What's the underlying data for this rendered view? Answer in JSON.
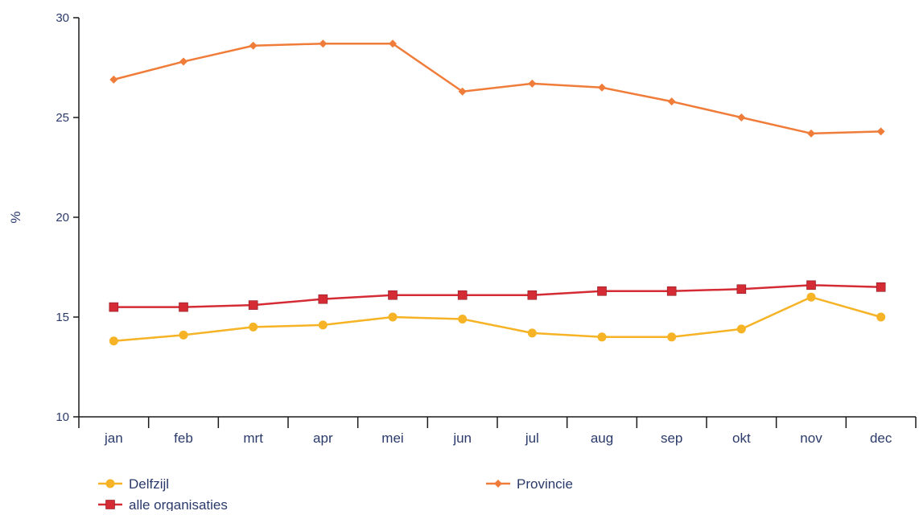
{
  "chart_data": {
    "type": "line",
    "title": "",
    "xlabel": "",
    "ylabel": "%",
    "ylim": [
      10,
      30
    ],
    "yticks": [
      10,
      15,
      20,
      25,
      30
    ],
    "categories": [
      "jan",
      "feb",
      "mrt",
      "apr",
      "mei",
      "jun",
      "jul",
      "aug",
      "sep",
      "okt",
      "nov",
      "dec"
    ],
    "grid": false,
    "legend_position": "bottom",
    "series": [
      {
        "name": "Delfzijl",
        "color": "#f5b325",
        "marker": "circle",
        "values": [
          13.8,
          14.1,
          14.5,
          14.6,
          15.0,
          14.9,
          14.2,
          14.0,
          14.0,
          14.4,
          16.0,
          15.0
        ]
      },
      {
        "name": "alle organisaties",
        "color": "#d42b35",
        "marker": "square",
        "values": [
          15.5,
          15.5,
          15.6,
          15.9,
          16.1,
          16.1,
          16.1,
          16.3,
          16.3,
          16.4,
          16.6,
          16.5
        ]
      },
      {
        "name": "Provincie",
        "color": "#f07c3a",
        "marker": "diamond",
        "values": [
          26.9,
          27.8,
          28.6,
          28.7,
          28.7,
          26.3,
          26.7,
          26.5,
          25.8,
          25.0,
          24.2,
          24.3
        ]
      }
    ]
  }
}
